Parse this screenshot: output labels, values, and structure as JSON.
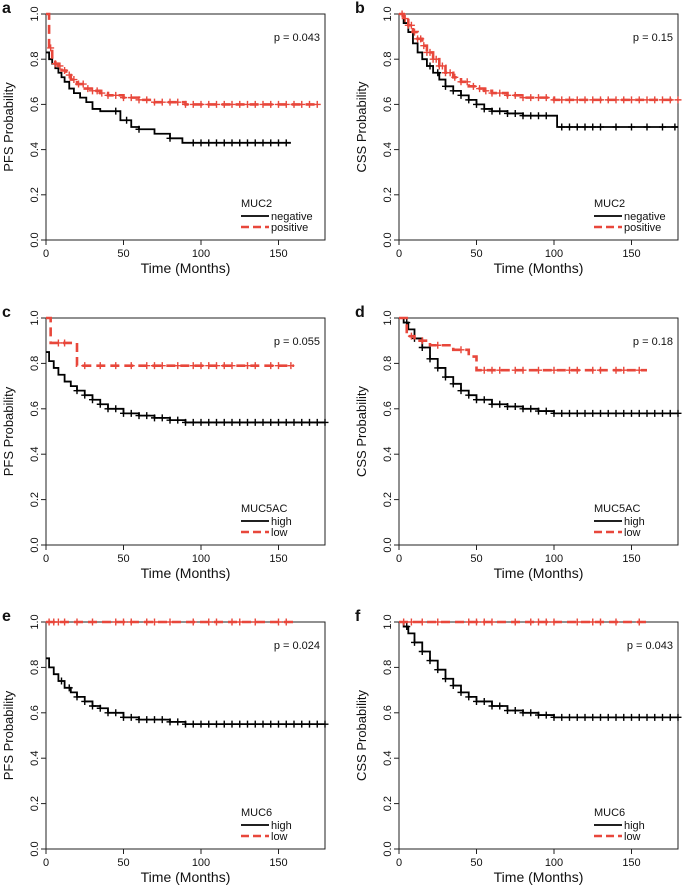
{
  "chart_data": [
    {
      "type": "line",
      "panel": "a",
      "title": "",
      "xlabel": "Time (Months)",
      "ylabel": "PFS Probability",
      "xlim": [
        0,
        180
      ],
      "ylim": [
        0,
        1
      ],
      "xticks": [
        "0",
        "50",
        "100",
        "150"
      ],
      "yticks": [
        "0.0",
        "0.2",
        "0.4",
        "0.6",
        "0.8",
        "1.0"
      ],
      "p_value": "p = 0.043",
      "legend_title": "MUC2",
      "legend_labels": [
        "negative",
        "positive"
      ],
      "series": [
        {
          "name": "negative",
          "color": "#000000",
          "x": [
            0,
            2,
            4,
            6,
            8,
            10,
            12,
            15,
            18,
            22,
            26,
            30,
            35,
            40,
            48,
            55,
            60,
            70,
            80,
            88,
            100,
            120,
            140,
            158
          ],
          "y": [
            0.83,
            0.8,
            0.78,
            0.76,
            0.74,
            0.72,
            0.7,
            0.67,
            0.65,
            0.63,
            0.61,
            0.58,
            0.57,
            0.57,
            0.53,
            0.5,
            0.49,
            0.47,
            0.45,
            0.43,
            0.43,
            0.43,
            0.43,
            0.43
          ],
          "censor_x": [
            45,
            52,
            60,
            80,
            95,
            100,
            105,
            110,
            115,
            120,
            125,
            130,
            135,
            140,
            145,
            150,
            155
          ]
        },
        {
          "name": "positive",
          "color": "#e8473b",
          "x": [
            0,
            2,
            4,
            6,
            8,
            10,
            13,
            16,
            20,
            25,
            30,
            35,
            40,
            50,
            60,
            70,
            80,
            90,
            100,
            120,
            140,
            160,
            175
          ],
          "y": [
            1.0,
            0.85,
            0.8,
            0.78,
            0.77,
            0.75,
            0.73,
            0.71,
            0.69,
            0.67,
            0.66,
            0.65,
            0.64,
            0.63,
            0.62,
            0.61,
            0.61,
            0.6,
            0.6,
            0.6,
            0.6,
            0.6,
            0.6
          ],
          "censor_x": [
            3,
            6,
            9,
            12,
            15,
            18,
            21,
            24,
            27,
            30,
            33,
            36,
            40,
            45,
            50,
            55,
            60,
            65,
            70,
            75,
            80,
            85,
            90,
            95,
            100,
            105,
            110,
            115,
            120,
            125,
            130,
            135,
            140,
            145,
            150,
            155,
            160,
            165,
            170,
            175
          ]
        }
      ]
    },
    {
      "type": "line",
      "panel": "b",
      "title": "",
      "xlabel": "Time (Months)",
      "ylabel": "CSS Probability",
      "xlim": [
        0,
        180
      ],
      "ylim": [
        0,
        1
      ],
      "xticks": [
        "0",
        "50",
        "100",
        "150"
      ],
      "yticks": [
        "0.0",
        "0.2",
        "0.4",
        "0.6",
        "0.8",
        "1.0"
      ],
      "p_value": "p = 0.15",
      "legend_title": "MUC2",
      "legend_labels": [
        "negative",
        "positive"
      ],
      "series": [
        {
          "name": "negative",
          "color": "#000000",
          "x": [
            0,
            3,
            6,
            9,
            12,
            15,
            18,
            22,
            26,
            30,
            35,
            40,
            45,
            50,
            55,
            60,
            70,
            80,
            90,
            100,
            102,
            120,
            150,
            180
          ],
          "y": [
            1.0,
            0.96,
            0.92,
            0.87,
            0.83,
            0.8,
            0.77,
            0.74,
            0.71,
            0.68,
            0.66,
            0.64,
            0.62,
            0.6,
            0.58,
            0.57,
            0.56,
            0.55,
            0.55,
            0.55,
            0.5,
            0.5,
            0.5,
            0.5
          ],
          "censor_x": [
            20,
            25,
            30,
            35,
            40,
            45,
            50,
            55,
            60,
            65,
            70,
            75,
            80,
            85,
            90,
            95,
            105,
            110,
            115,
            120,
            125,
            130,
            140,
            150,
            160,
            170,
            178
          ]
        },
        {
          "name": "positive",
          "color": "#e8473b",
          "x": [
            0,
            3,
            6,
            9,
            12,
            15,
            18,
            22,
            26,
            30,
            35,
            40,
            45,
            50,
            55,
            60,
            70,
            80,
            90,
            100,
            120,
            150,
            180
          ],
          "y": [
            1.0,
            0.98,
            0.95,
            0.92,
            0.89,
            0.86,
            0.83,
            0.8,
            0.77,
            0.74,
            0.72,
            0.7,
            0.68,
            0.67,
            0.66,
            0.65,
            0.64,
            0.63,
            0.63,
            0.62,
            0.62,
            0.62,
            0.62
          ],
          "censor_x": [
            2,
            4,
            6,
            8,
            10,
            12,
            14,
            16,
            18,
            20,
            22,
            24,
            26,
            28,
            30,
            33,
            36,
            40,
            44,
            48,
            52,
            56,
            60,
            65,
            70,
            75,
            80,
            85,
            90,
            95,
            100,
            105,
            110,
            115,
            120,
            125,
            130,
            135,
            140,
            145,
            150,
            155,
            160,
            165,
            170,
            175,
            180
          ]
        }
      ]
    },
    {
      "type": "line",
      "panel": "c",
      "title": "",
      "xlabel": "Time (Months)",
      "ylabel": "PFS Probability",
      "xlim": [
        0,
        180
      ],
      "ylim": [
        0,
        1
      ],
      "xticks": [
        "0",
        "50",
        "100",
        "150"
      ],
      "yticks": [
        "0.0",
        "0.2",
        "0.4",
        "0.6",
        "0.8",
        "1.0"
      ],
      "p_value": "p = 0.055",
      "legend_title": "MUC5AC",
      "legend_labels": [
        "high",
        "low"
      ],
      "series": [
        {
          "name": "high",
          "color": "#000000",
          "x": [
            0,
            2,
            5,
            8,
            12,
            16,
            20,
            25,
            30,
            35,
            40,
            50,
            60,
            70,
            80,
            90,
            100,
            120,
            150,
            180
          ],
          "y": [
            0.85,
            0.81,
            0.78,
            0.75,
            0.72,
            0.7,
            0.68,
            0.66,
            0.64,
            0.62,
            0.6,
            0.58,
            0.57,
            0.56,
            0.55,
            0.54,
            0.54,
            0.54,
            0.54,
            0.54
          ],
          "censor_x": [
            20,
            25,
            30,
            35,
            40,
            45,
            50,
            55,
            60,
            65,
            70,
            75,
            80,
            85,
            90,
            95,
            100,
            105,
            110,
            115,
            120,
            125,
            130,
            135,
            140,
            145,
            150,
            155,
            160,
            165,
            170,
            175,
            180
          ]
        },
        {
          "name": "low",
          "color": "#e8473b",
          "x": [
            0,
            3,
            5,
            15,
            20,
            150,
            160
          ],
          "y": [
            1.0,
            0.89,
            0.89,
            0.89,
            0.79,
            0.79,
            0.79
          ],
          "censor_x": [
            8,
            12,
            25,
            35,
            45,
            55,
            65,
            70,
            75,
            85,
            95,
            100,
            105,
            110,
            115,
            120,
            130,
            135,
            145,
            150,
            158
          ]
        }
      ]
    },
    {
      "type": "line",
      "panel": "d",
      "title": "",
      "xlabel": "Time (Months)",
      "ylabel": "CSS Probability",
      "xlim": [
        0,
        180
      ],
      "ylim": [
        0,
        1
      ],
      "xticks": [
        "0",
        "50",
        "100",
        "150"
      ],
      "yticks": [
        "0.0",
        "0.2",
        "0.4",
        "0.6",
        "0.8",
        "1.0"
      ],
      "p_value": "p = 0.18",
      "legend_title": "MUC5AC",
      "legend_labels": [
        "high",
        "low"
      ],
      "series": [
        {
          "name": "high",
          "color": "#000000",
          "x": [
            0,
            3,
            6,
            10,
            15,
            20,
            25,
            30,
            35,
            40,
            45,
            50,
            60,
            70,
            80,
            90,
            100,
            120,
            150,
            180
          ],
          "y": [
            1.0,
            0.98,
            0.95,
            0.91,
            0.87,
            0.82,
            0.78,
            0.74,
            0.71,
            0.68,
            0.66,
            0.64,
            0.62,
            0.61,
            0.6,
            0.59,
            0.58,
            0.58,
            0.58,
            0.58
          ],
          "censor_x": [
            5,
            10,
            15,
            20,
            25,
            30,
            35,
            40,
            45,
            50,
            55,
            60,
            65,
            70,
            75,
            80,
            85,
            90,
            95,
            100,
            105,
            110,
            115,
            120,
            125,
            130,
            135,
            140,
            145,
            150,
            155,
            160,
            165,
            170,
            175,
            180
          ]
        },
        {
          "name": "low",
          "color": "#e8473b",
          "x": [
            0,
            5,
            10,
            20,
            35,
            45,
            50,
            160
          ],
          "y": [
            1.0,
            0.92,
            0.9,
            0.88,
            0.86,
            0.83,
            0.77,
            0.77
          ],
          "censor_x": [
            8,
            15,
            25,
            40,
            55,
            60,
            65,
            75,
            80,
            90,
            100,
            110,
            115,
            125,
            130,
            140,
            145,
            155
          ]
        }
      ]
    },
    {
      "type": "line",
      "panel": "e",
      "title": "",
      "xlabel": "Time (Months)",
      "ylabel": "PFS Probability",
      "xlim": [
        0,
        180
      ],
      "ylim": [
        0,
        1
      ],
      "xticks": [
        "0",
        "50",
        "100",
        "150"
      ],
      "yticks": [
        "0.0",
        "0.2",
        "0.4",
        "0.6",
        "0.8",
        "1.0"
      ],
      "p_value": "p = 0.024",
      "legend_title": "MUC6",
      "legend_labels": [
        "high",
        "low"
      ],
      "series": [
        {
          "name": "high",
          "color": "#000000",
          "x": [
            0,
            2,
            5,
            8,
            12,
            16,
            20,
            25,
            30,
            35,
            40,
            50,
            60,
            70,
            80,
            90,
            100,
            120,
            150,
            180
          ],
          "y": [
            0.84,
            0.8,
            0.77,
            0.74,
            0.71,
            0.69,
            0.67,
            0.65,
            0.63,
            0.62,
            0.6,
            0.58,
            0.57,
            0.57,
            0.56,
            0.55,
            0.55,
            0.55,
            0.55,
            0.55
          ],
          "censor_x": [
            10,
            15,
            20,
            25,
            30,
            35,
            40,
            45,
            50,
            55,
            60,
            65,
            70,
            75,
            80,
            85,
            90,
            95,
            100,
            105,
            110,
            115,
            120,
            125,
            130,
            135,
            140,
            145,
            150,
            155,
            160,
            165,
            170,
            175,
            180
          ]
        },
        {
          "name": "low",
          "color": "#e8473b",
          "x": [
            0,
            160
          ],
          "y": [
            1.0,
            1.0
          ],
          "censor_x": [
            2,
            5,
            8,
            12,
            20,
            30,
            45,
            50,
            55,
            65,
            70,
            80,
            95,
            105,
            110,
            120,
            125,
            135,
            150,
            155
          ]
        }
      ]
    },
    {
      "type": "line",
      "panel": "f",
      "title": "",
      "xlabel": "Time (Months)",
      "ylabel": "CSS Probability",
      "xlim": [
        0,
        180
      ],
      "ylim": [
        0,
        1
      ],
      "xticks": [
        "0",
        "50",
        "100",
        "150"
      ],
      "yticks": [
        "0.0",
        "0.2",
        "0.4",
        "0.6",
        "0.8",
        "1.0"
      ],
      "p_value": "p = 0.043",
      "legend_title": "MUC6",
      "legend_labels": [
        "high",
        "low"
      ],
      "series": [
        {
          "name": "high",
          "color": "#000000",
          "x": [
            0,
            3,
            6,
            10,
            15,
            20,
            25,
            30,
            35,
            40,
            45,
            50,
            60,
            70,
            80,
            90,
            100,
            120,
            150,
            180
          ],
          "y": [
            1.0,
            0.98,
            0.95,
            0.91,
            0.87,
            0.83,
            0.79,
            0.75,
            0.72,
            0.69,
            0.67,
            0.65,
            0.63,
            0.61,
            0.6,
            0.59,
            0.58,
            0.58,
            0.58,
            0.58
          ],
          "censor_x": [
            5,
            10,
            15,
            20,
            25,
            30,
            35,
            40,
            45,
            50,
            55,
            60,
            65,
            70,
            75,
            80,
            85,
            90,
            95,
            100,
            105,
            110,
            115,
            120,
            125,
            130,
            135,
            140,
            145,
            150,
            155,
            160,
            165,
            170,
            175,
            180
          ]
        },
        {
          "name": "low",
          "color": "#e8473b",
          "x": [
            0,
            160
          ],
          "y": [
            1.0,
            1.0
          ],
          "censor_x": [
            3,
            8,
            15,
            25,
            45,
            50,
            55,
            60,
            75,
            85,
            90,
            95,
            100,
            115,
            125,
            130,
            140,
            155
          ]
        }
      ]
    }
  ]
}
